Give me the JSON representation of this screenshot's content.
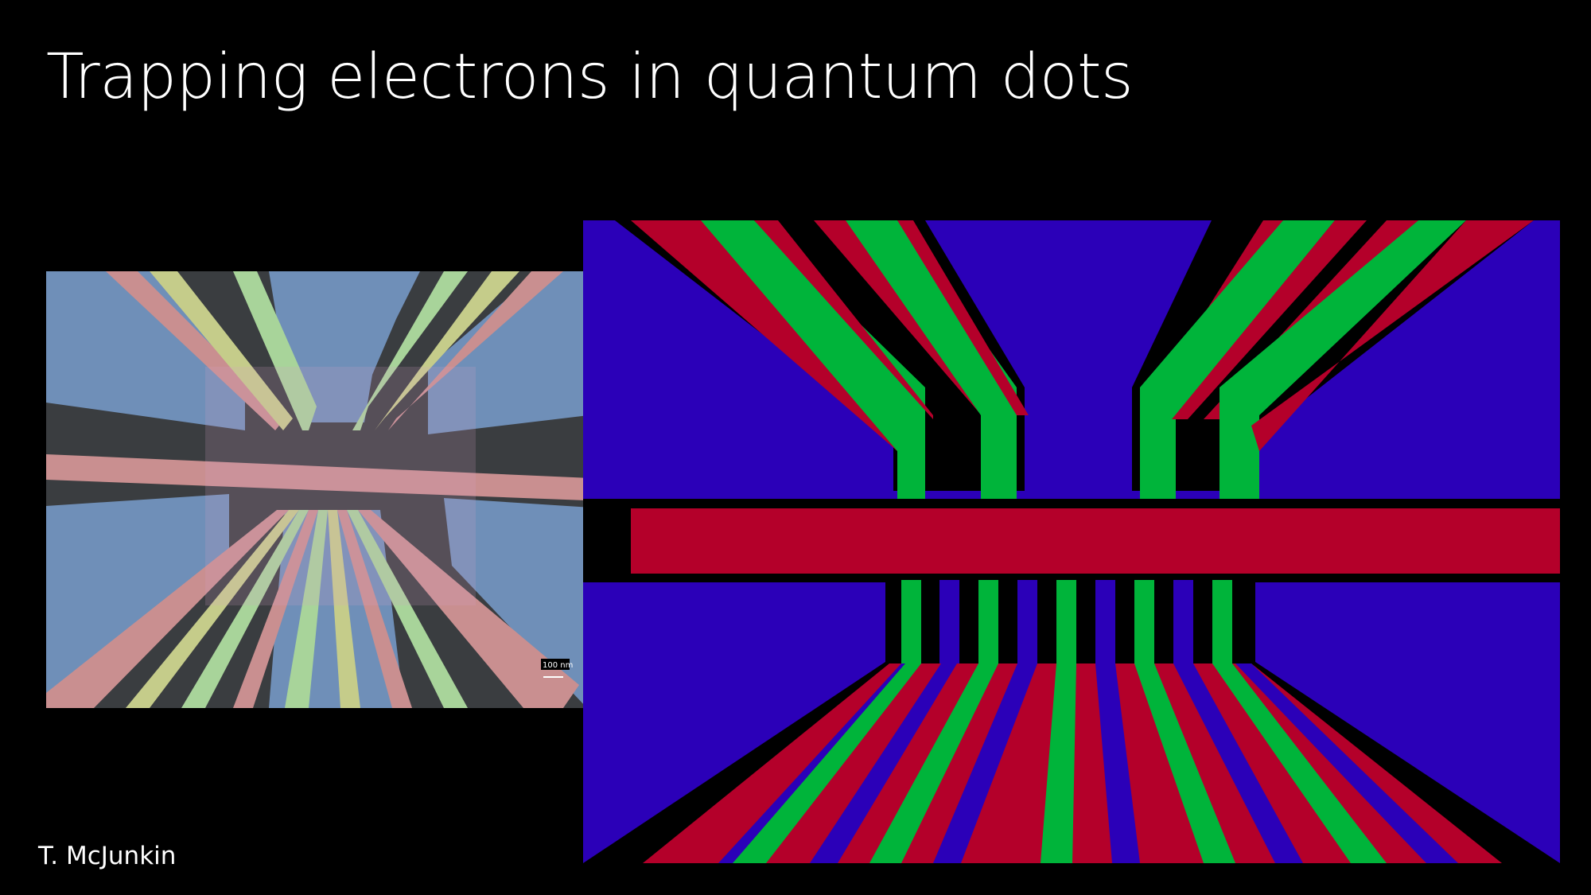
{
  "slide": {
    "title": "Trapping electrons in quantum dots",
    "credit": "T. McJunkin"
  },
  "sem_image": {
    "scale_bar": "100 nm",
    "colors": {
      "background": "#3a3d40",
      "screening_gate": "#6f8fb8",
      "plunger_gate": "#c98f90",
      "accumulation_gate": "#c5cc8a",
      "barrier_gate": "#a8d49a"
    }
  },
  "diagram": {
    "colors": {
      "screening": "#2b00b8",
      "red_layer": "#b4002a",
      "green_layer": "#00b43a",
      "gap": "#000000"
    }
  }
}
